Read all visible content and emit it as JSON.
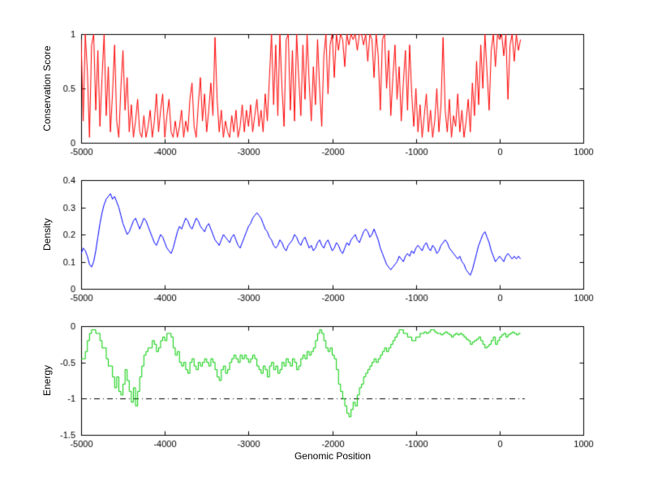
{
  "figure": {
    "xlabel": "Genomic Position",
    "background": "#ffffff",
    "axis_color": "#000000"
  },
  "chart_data": [
    {
      "type": "line",
      "title": "",
      "ylabel": "Conservation Score",
      "xlabel": "",
      "color": "#ff0000",
      "xlim": [
        -5000,
        1000
      ],
      "ylim": [
        0,
        1
      ],
      "xticks": [
        -5000,
        -4000,
        -3000,
        -2000,
        -1000,
        0,
        1000
      ],
      "yticks": [
        0,
        0.5,
        1
      ],
      "grid": false,
      "legend": "none",
      "x_start": -5000,
      "x_step": 25,
      "values": [
        0.95,
        0.2,
        1,
        0.65,
        0.05,
        0.9,
        1,
        0.3,
        0.85,
        0.15,
        0.6,
        1,
        0.25,
        0.7,
        0.1,
        0.45,
        0.9,
        0.2,
        0.05,
        0.5,
        0.85,
        0.3,
        0.6,
        0.1,
        0.35,
        0.05,
        0.2,
        0.4,
        0.1,
        0.05,
        0.25,
        0.05,
        0.15,
        0.3,
        0.05,
        0.2,
        0.45,
        0.1,
        0.3,
        0.45,
        0.05,
        0.25,
        0.4,
        0.1,
        0.05,
        0.2,
        0.05,
        0.15,
        0.3,
        0.05,
        0.2,
        0.1,
        0.4,
        0.55,
        0.15,
        0.05,
        0.35,
        0.6,
        0.2,
        0.45,
        0.1,
        0.3,
        0.55,
        0.25,
        0.97,
        0.4,
        0.1,
        0.3,
        0.05,
        0.2,
        0.1,
        0.05,
        0.25,
        0.1,
        0.3,
        0.05,
        0.15,
        0.35,
        0.1,
        0.3,
        0.15,
        0.35,
        0.1,
        0.25,
        0.4,
        0.15,
        0.3,
        0.1,
        0.45,
        0.2,
        0.6,
        1,
        0.35,
        0.9,
        0.25,
        1,
        0.5,
        0.15,
        0.95,
        1,
        0.3,
        0.85,
        0.2,
        1,
        0.6,
        0.25,
        0.9,
        0.4,
        1,
        0.55,
        0.2,
        0.7,
        0.35,
        0.95,
        0.5,
        0.15,
        0.8,
        1,
        0.45,
        0.9,
        1,
        0.6,
        1,
        0.85,
        1,
        0.95,
        0.7,
        1,
        0.9,
        1,
        0.95,
        1,
        0.85,
        1,
        1,
        0.9,
        1,
        0.75,
        1,
        0.95,
        0.6,
        1,
        0.8,
        0.3,
        0.95,
        1,
        0.5,
        0.85,
        0.25,
        0.6,
        0.9,
        0.4,
        0.7,
        0.2,
        0.55,
        0.85,
        0.3,
        0.9,
        0.45,
        0.15,
        0.5,
        0.1,
        0.35,
        0.05,
        0.25,
        0.45,
        0.1,
        0.3,
        0.05,
        0.2,
        0.5,
        0.1,
        0.35,
        0.97,
        0.3,
        0.1,
        0.4,
        0.05,
        0.25,
        0.15,
        0.45,
        0.1,
        0.3,
        0.05,
        0.2,
        0.4,
        0.1,
        0.55,
        0.25,
        0.75,
        0.35,
        0.9,
        0.5,
        1,
        0.65,
        0.3,
        0.85,
        1,
        0.7,
        1,
        0.95,
        1,
        0.8,
        1,
        0.4,
        0.9,
        1,
        0.75,
        1,
        0.85,
        0.95
      ]
    },
    {
      "type": "line",
      "title": "",
      "ylabel": "Density",
      "xlabel": "",
      "color": "#0000ff",
      "xlim": [
        -5000,
        1000
      ],
      "ylim": [
        0,
        0.4
      ],
      "xticks": [
        -5000,
        -4000,
        -3000,
        -2000,
        -1000,
        0,
        1000
      ],
      "yticks": [
        0,
        0.1,
        0.2,
        0.3,
        0.4
      ],
      "grid": false,
      "legend": "none",
      "x_start": -5000,
      "x_step": 25,
      "values": [
        0.13,
        0.15,
        0.14,
        0.12,
        0.09,
        0.08,
        0.1,
        0.14,
        0.19,
        0.24,
        0.28,
        0.31,
        0.33,
        0.34,
        0.35,
        0.33,
        0.34,
        0.32,
        0.3,
        0.27,
        0.24,
        0.22,
        0.2,
        0.21,
        0.23,
        0.25,
        0.26,
        0.24,
        0.22,
        0.24,
        0.26,
        0.25,
        0.23,
        0.21,
        0.19,
        0.17,
        0.16,
        0.18,
        0.2,
        0.19,
        0.17,
        0.15,
        0.14,
        0.13,
        0.15,
        0.18,
        0.21,
        0.23,
        0.22,
        0.24,
        0.26,
        0.25,
        0.23,
        0.22,
        0.24,
        0.26,
        0.25,
        0.23,
        0.22,
        0.21,
        0.23,
        0.24,
        0.22,
        0.2,
        0.18,
        0.17,
        0.16,
        0.18,
        0.2,
        0.19,
        0.18,
        0.17,
        0.19,
        0.2,
        0.18,
        0.16,
        0.15,
        0.17,
        0.19,
        0.21,
        0.23,
        0.24,
        0.26,
        0.27,
        0.28,
        0.27,
        0.26,
        0.24,
        0.22,
        0.21,
        0.19,
        0.18,
        0.16,
        0.15,
        0.16,
        0.18,
        0.17,
        0.15,
        0.14,
        0.16,
        0.17,
        0.18,
        0.2,
        0.19,
        0.17,
        0.16,
        0.18,
        0.19,
        0.17,
        0.15,
        0.16,
        0.14,
        0.15,
        0.17,
        0.18,
        0.16,
        0.15,
        0.17,
        0.18,
        0.16,
        0.14,
        0.15,
        0.17,
        0.16,
        0.14,
        0.13,
        0.15,
        0.17,
        0.16,
        0.18,
        0.19,
        0.2,
        0.18,
        0.17,
        0.19,
        0.21,
        0.22,
        0.21,
        0.19,
        0.2,
        0.22,
        0.2,
        0.18,
        0.15,
        0.13,
        0.11,
        0.09,
        0.08,
        0.07,
        0.08,
        0.09,
        0.1,
        0.12,
        0.11,
        0.1,
        0.12,
        0.13,
        0.12,
        0.14,
        0.13,
        0.15,
        0.16,
        0.15,
        0.14,
        0.16,
        0.17,
        0.15,
        0.14,
        0.16,
        0.15,
        0.13,
        0.14,
        0.16,
        0.17,
        0.18,
        0.17,
        0.15,
        0.14,
        0.13,
        0.12,
        0.11,
        0.12,
        0.1,
        0.09,
        0.07,
        0.06,
        0.05,
        0.07,
        0.1,
        0.13,
        0.16,
        0.18,
        0.2,
        0.21,
        0.19,
        0.17,
        0.14,
        0.12,
        0.1,
        0.11,
        0.12,
        0.11,
        0.1,
        0.12,
        0.13,
        0.12,
        0.11,
        0.12,
        0.11,
        0.12,
        0.11
      ]
    },
    {
      "type": "line",
      "title": "",
      "ylabel": "Energy",
      "xlabel": "Genomic Position",
      "color": "#00cc00",
      "line_style": "steps",
      "xlim": [
        -5000,
        1000
      ],
      "ylim": [
        -1.5,
        0
      ],
      "xticks": [
        -5000,
        -4000,
        -3000,
        -2000,
        -1000,
        0,
        1000
      ],
      "yticks": [
        -1.5,
        -1,
        -0.5,
        0
      ],
      "grid": false,
      "legend": "none",
      "threshold_line": {
        "y": -1,
        "style": "dash-dot",
        "color": "#000000",
        "x_range": [
          -5000,
          300
        ]
      },
      "x_start": -5000,
      "x_step": 25,
      "values": [
        -0.45,
        -0.45,
        -0.35,
        -0.2,
        -0.1,
        -0.05,
        -0.05,
        -0.1,
        -0.1,
        -0.2,
        -0.3,
        -0.3,
        -0.45,
        -0.55,
        -0.55,
        -0.7,
        -0.85,
        -0.7,
        -0.9,
        -0.95,
        -0.8,
        -0.6,
        -0.75,
        -0.9,
        -1.05,
        -0.85,
        -1.1,
        -0.9,
        -0.7,
        -0.55,
        -0.4,
        -0.35,
        -0.3,
        -0.3,
        -0.2,
        -0.25,
        -0.35,
        -0.3,
        -0.2,
        -0.15,
        -0.2,
        -0.1,
        -0.1,
        -0.15,
        -0.3,
        -0.4,
        -0.35,
        -0.5,
        -0.55,
        -0.5,
        -0.6,
        -0.65,
        -0.5,
        -0.45,
        -0.55,
        -0.6,
        -0.5,
        -0.55,
        -0.5,
        -0.45,
        -0.5,
        -0.55,
        -0.45,
        -0.5,
        -0.6,
        -0.7,
        -0.75,
        -0.6,
        -0.55,
        -0.65,
        -0.6,
        -0.5,
        -0.45,
        -0.4,
        -0.45,
        -0.5,
        -0.4,
        -0.45,
        -0.4,
        -0.45,
        -0.5,
        -0.45,
        -0.4,
        -0.45,
        -0.55,
        -0.6,
        -0.65,
        -0.55,
        -0.6,
        -0.7,
        -0.55,
        -0.5,
        -0.6,
        -0.55,
        -0.65,
        -0.6,
        -0.5,
        -0.55,
        -0.45,
        -0.5,
        -0.55,
        -0.45,
        -0.5,
        -0.6,
        -0.55,
        -0.45,
        -0.4,
        -0.45,
        -0.35,
        -0.4,
        -0.35,
        -0.3,
        -0.2,
        -0.1,
        -0.05,
        -0.1,
        -0.2,
        -0.3,
        -0.35,
        -0.3,
        -0.4,
        -0.45,
        -0.6,
        -0.8,
        -0.9,
        -1.0,
        -1.1,
        -1.2,
        -1.25,
        -1.15,
        -1.05,
        -1.1,
        -0.95,
        -0.85,
        -0.8,
        -0.7,
        -0.65,
        -0.6,
        -0.55,
        -0.5,
        -0.45,
        -0.5,
        -0.45,
        -0.4,
        -0.35,
        -0.3,
        -0.35,
        -0.3,
        -0.25,
        -0.2,
        -0.15,
        -0.1,
        -0.05,
        -0.05,
        -0.1,
        -0.1,
        -0.15,
        -0.15,
        -0.2,
        -0.2,
        -0.15,
        -0.15,
        -0.1,
        -0.1,
        -0.08,
        -0.1,
        -0.08,
        -0.05,
        -0.05,
        -0.08,
        -0.1,
        -0.1,
        -0.12,
        -0.1,
        -0.08,
        -0.1,
        -0.12,
        -0.15,
        -0.12,
        -0.1,
        -0.12,
        -0.1,
        -0.12,
        -0.15,
        -0.18,
        -0.2,
        -0.25,
        -0.22,
        -0.2,
        -0.18,
        -0.15,
        -0.2,
        -0.25,
        -0.3,
        -0.28,
        -0.25,
        -0.2,
        -0.15,
        -0.25,
        -0.2,
        -0.15,
        -0.12,
        -0.1,
        -0.15,
        -0.12,
        -0.1,
        -0.08,
        -0.1,
        -0.12,
        -0.1,
        -0.1
      ]
    }
  ]
}
